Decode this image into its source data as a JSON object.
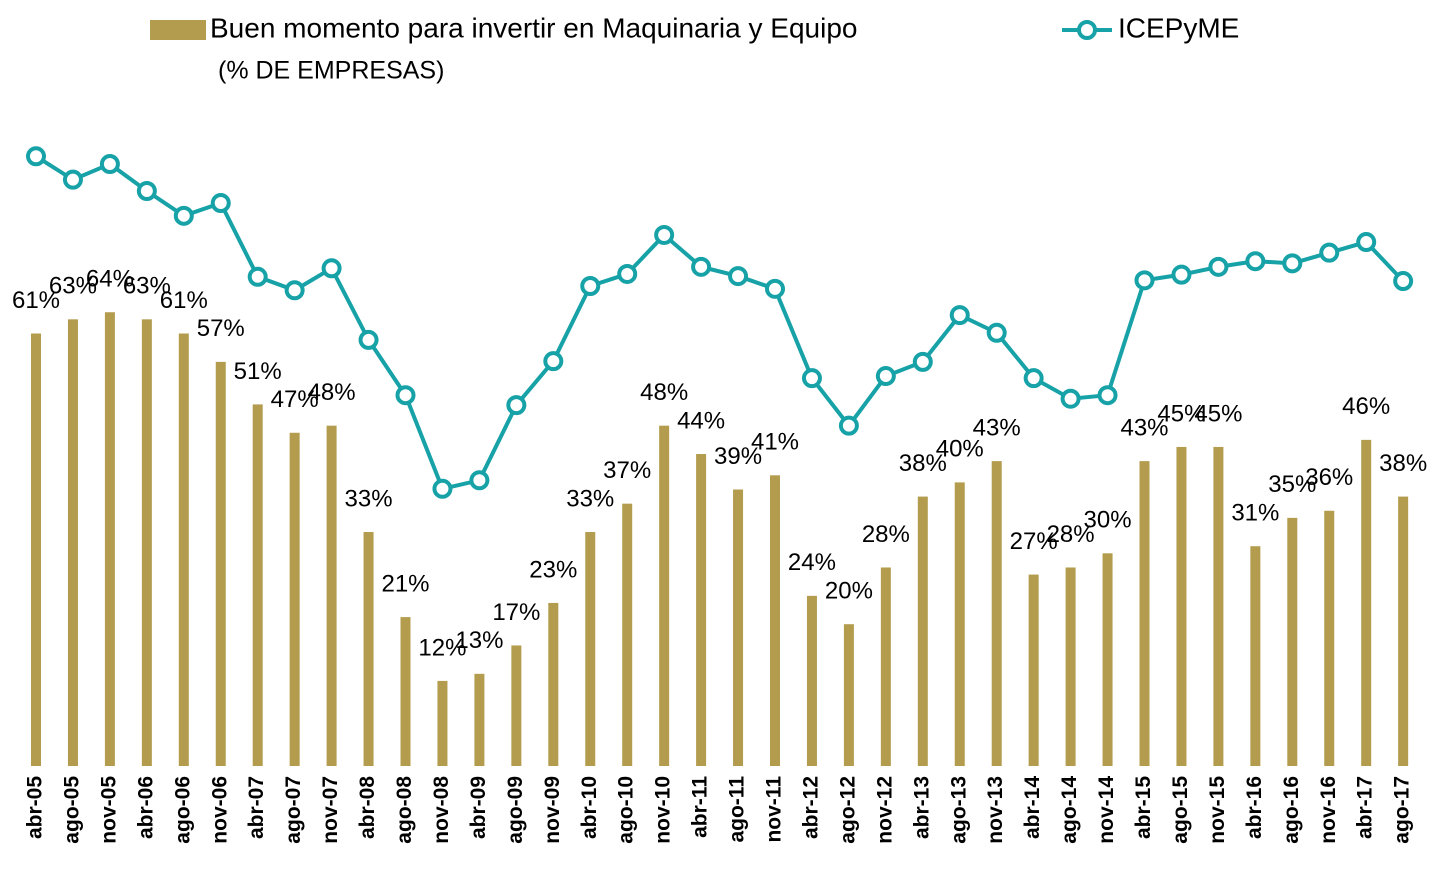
{
  "chart_data": {
    "type": "bar_line",
    "subtitle": "(% DE EMPRESAS)",
    "categories": [
      "abr-05",
      "ago-05",
      "nov-05",
      "abr-06",
      "ago-06",
      "nov-06",
      "abr-07",
      "ago-07",
      "nov-07",
      "abr-08",
      "ago-08",
      "nov-08",
      "abr-09",
      "ago-09",
      "nov-09",
      "abr-10",
      "ago-10",
      "nov-10",
      "abr-11",
      "ago-11",
      "nov-11",
      "abr-12",
      "ago-12",
      "nov-12",
      "abr-13",
      "ago-13",
      "nov-13",
      "abr-14",
      "ago-14",
      "nov-14",
      "abr-15",
      "ago-15",
      "nov-15",
      "abr-16",
      "ago-16",
      "nov-16",
      "abr-17",
      "ago-17"
    ],
    "series": [
      {
        "name": "Buen momento para invertir en Maquinaria y Equipo",
        "type": "bar",
        "color": "#b39c4d",
        "values": [
          61,
          63,
          64,
          63,
          61,
          57,
          51,
          47,
          48,
          33,
          21,
          12,
          13,
          17,
          23,
          33,
          37,
          48,
          44,
          39,
          41,
          24,
          20,
          28,
          38,
          40,
          43,
          27,
          28,
          30,
          43,
          45,
          45,
          31,
          35,
          36,
          46,
          38
        ],
        "value_labels": [
          "61%",
          "63%",
          "64%",
          "63%",
          "61%",
          "57%",
          "51%",
          "47%",
          "48%",
          "33%",
          "21%",
          "12%",
          "13%",
          "17%",
          "23%",
          "33%",
          "37%",
          "48%",
          "44%",
          "39%",
          "41%",
          "24%",
          "20%",
          "28%",
          "38%",
          "40%",
          "43%",
          "27%",
          "28%",
          "30%",
          "43%",
          "45%",
          "45%",
          "31%",
          "35%",
          "36%",
          "46%",
          "38%"
        ]
      },
      {
        "name": "ICEPyME",
        "type": "line",
        "color": "#17a2a8",
        "values": [
          86.0,
          82.7,
          84.9,
          81.1,
          77.6,
          79.4,
          69.0,
          67.1,
          70.2,
          60.1,
          52.3,
          39.1,
          40.3,
          50.9,
          57.1,
          67.7,
          69.4,
          74.9,
          70.4,
          69.1,
          67.3,
          54.7,
          48.0,
          55.0,
          57.0,
          63.6,
          61.1,
          54.7,
          51.8,
          52.3,
          68.5,
          69.3,
          70.4,
          71.2,
          70.9,
          72.4,
          73.9,
          68.4
        ]
      }
    ],
    "ylim": [
      0,
      100
    ]
  }
}
